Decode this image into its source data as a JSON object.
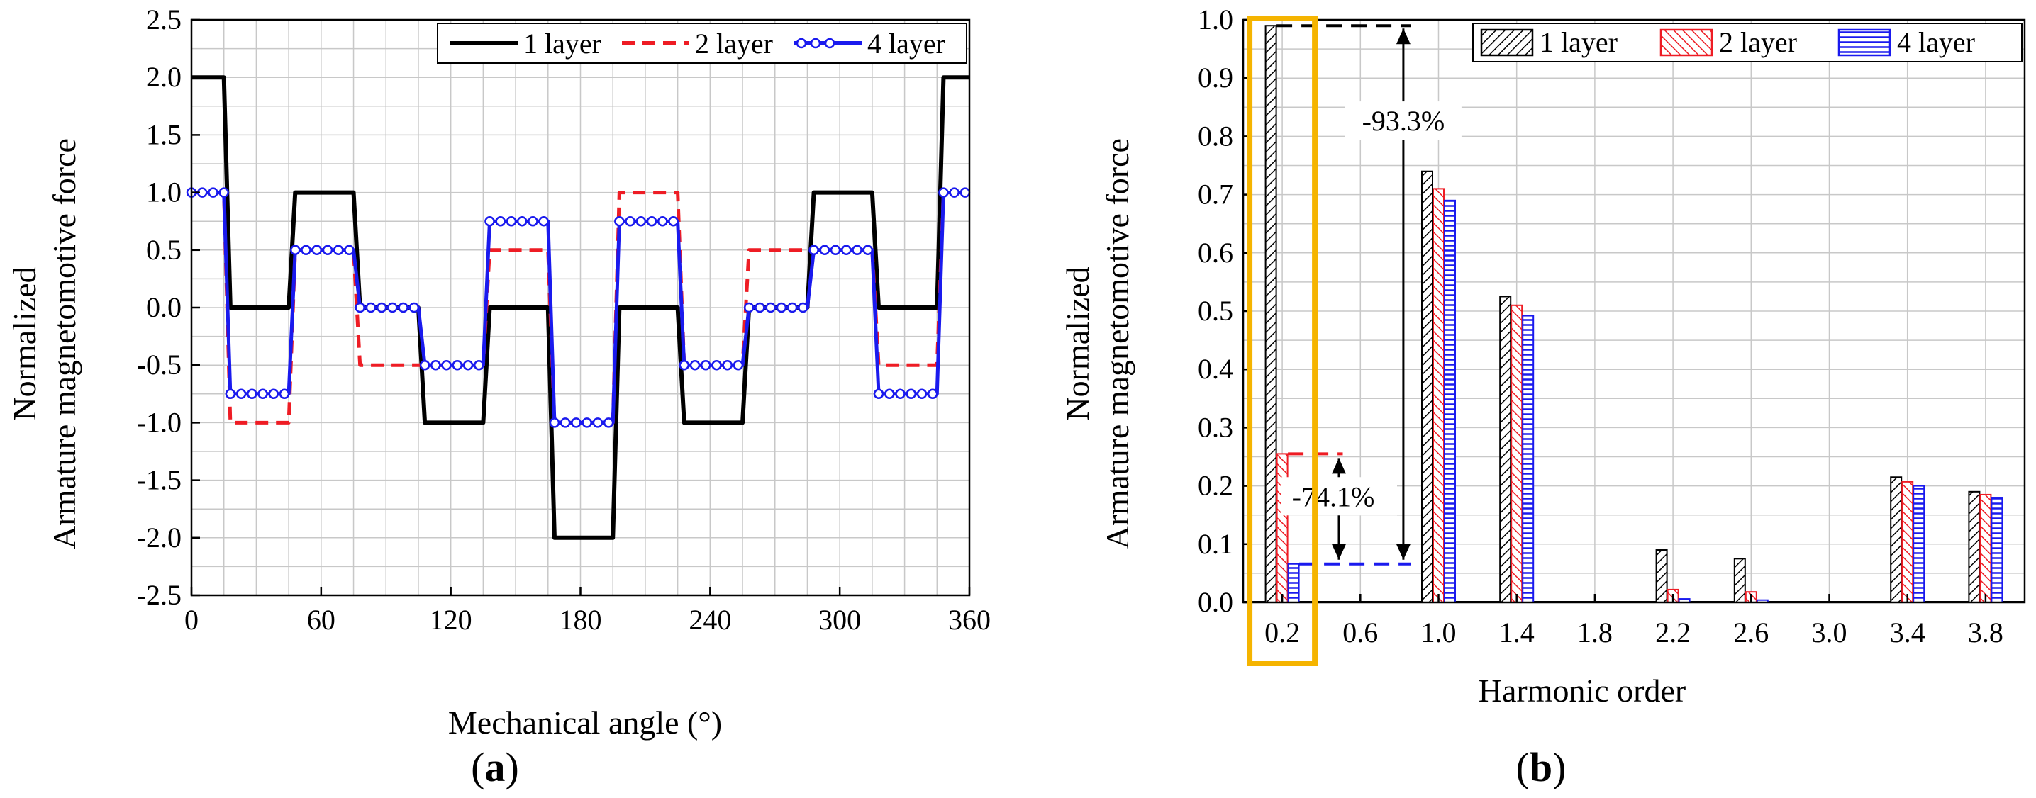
{
  "chart_data": [
    {
      "id": "a",
      "type": "line",
      "panel_label": "(a)",
      "panel_letter": "a",
      "xlabel": "Mechanical angle (°)",
      "ylabel": [
        "Normalized",
        "Armature magnetomotive force"
      ],
      "xlim": [
        0,
        360
      ],
      "ylim": [
        -2.5,
        2.5
      ],
      "xticks": [
        0,
        60,
        120,
        180,
        240,
        300,
        360
      ],
      "yticks": [
        -2.5,
        -2.0,
        -1.5,
        -1.0,
        -0.5,
        0.0,
        0.5,
        1.0,
        1.5,
        2.0,
        2.5
      ],
      "ytick_labels": [
        "-2.5",
        "-2.0",
        "-1.5",
        "-1.0",
        "-0.5",
        "0.0",
        "0.5",
        "1.0",
        "1.5",
        "2.0",
        "2.5"
      ],
      "grid": true,
      "legend_position": "top-right",
      "series": [
        {
          "name": "1 layer",
          "color": "#000000",
          "style": "solid",
          "x": [
            0,
            15,
            18,
            45,
            48,
            75,
            78,
            105,
            108,
            135,
            138,
            165,
            168,
            195,
            198,
            225,
            228,
            255,
            258,
            285,
            288,
            315,
            318,
            345,
            348,
            360
          ],
          "y": [
            2,
            2,
            0,
            0,
            1,
            1,
            0,
            0,
            -1,
            -1,
            0,
            0,
            -2,
            -2,
            0,
            0,
            -1,
            -1,
            0,
            0,
            1,
            1,
            0,
            0,
            2,
            2
          ]
        },
        {
          "name": "2 layer",
          "color": "#ee1c24",
          "style": "dashed",
          "x": [
            0,
            15,
            18,
            45,
            48,
            75,
            78,
            105,
            108,
            135,
            138,
            165,
            168,
            195,
            198,
            225,
            228,
            255,
            258,
            285,
            288,
            315,
            318,
            345,
            348,
            360
          ],
          "y": [
            1,
            1,
            -1,
            -1,
            0.5,
            0.5,
            -0.5,
            -0.5,
            -0.5,
            -0.5,
            0.5,
            0.5,
            -1,
            -1,
            1,
            1,
            -0.5,
            -0.5,
            0.5,
            0.5,
            0.5,
            0.5,
            -0.5,
            -0.5,
            1,
            1
          ]
        },
        {
          "name": "4 layer",
          "color": "#1a1aee",
          "style": "solid-circles",
          "x": [
            0,
            15,
            18,
            45,
            48,
            75,
            78,
            105,
            108,
            135,
            138,
            165,
            168,
            195,
            198,
            225,
            228,
            255,
            258,
            285,
            288,
            315,
            318,
            345,
            348,
            360
          ],
          "y": [
            1,
            1,
            -0.75,
            -0.75,
            0.5,
            0.5,
            0,
            0,
            -0.5,
            -0.5,
            0.75,
            0.75,
            -1,
            -1,
            0.75,
            0.75,
            -0.5,
            -0.5,
            0,
            0,
            0.5,
            0.5,
            -0.75,
            -0.75,
            1,
            1
          ]
        }
      ]
    },
    {
      "id": "b",
      "type": "bar",
      "panel_label": "(b)",
      "panel_letter": "b",
      "xlabel": "Harmonic order",
      "ylabel": [
        "Normalized",
        "Armature magnetomotive force"
      ],
      "xlim": [
        0,
        4
      ],
      "ylim": [
        0,
        1.0
      ],
      "xticks": [
        0.2,
        0.6,
        1.0,
        1.4,
        1.8,
        2.2,
        2.6,
        3.0,
        3.4,
        3.8
      ],
      "xtick_labels": [
        "0.2",
        "0.6",
        "1.0",
        "1.4",
        "1.8",
        "2.2",
        "2.6",
        "3.0",
        "3.4",
        "3.8"
      ],
      "yticks": [
        0.0,
        0.1,
        0.2,
        0.3,
        0.4,
        0.5,
        0.6,
        0.7,
        0.8,
        0.9,
        1.0
      ],
      "ytick_labels": [
        "0.0",
        "0.1",
        "0.2",
        "0.3",
        "0.4",
        "0.5",
        "0.6",
        "0.7",
        "0.8",
        "0.9",
        "1.0"
      ],
      "grid": true,
      "legend_position": "top-right",
      "categories": [
        0.2,
        1.0,
        1.4,
        2.2,
        2.6,
        3.4,
        3.8
      ],
      "series": [
        {
          "name": "1 layer",
          "color": "#000000",
          "hatch": "diagonal-right",
          "values": [
            0.99,
            0.74,
            0.525,
            0.09,
            0.075,
            0.215,
            0.19
          ]
        },
        {
          "name": "2 layer",
          "color": "#ee1c24",
          "hatch": "diagonal-left",
          "values": [
            0.255,
            0.71,
            0.51,
            0.022,
            0.018,
            0.207,
            0.185
          ]
        },
        {
          "name": "4 layer",
          "color": "#1a1aee",
          "hatch": "horizontal",
          "values": [
            0.066,
            0.69,
            0.492,
            0.006,
            0.004,
            0.2,
            0.18
          ]
        }
      ],
      "annotations": [
        {
          "text": "-93.3%",
          "from": 0.99,
          "to": 0.066
        },
        {
          "text": "-74.1%",
          "from": 0.255,
          "to": 0.066
        }
      ],
      "highlight": {
        "category": 0.2,
        "color": "#f5b400"
      }
    }
  ]
}
